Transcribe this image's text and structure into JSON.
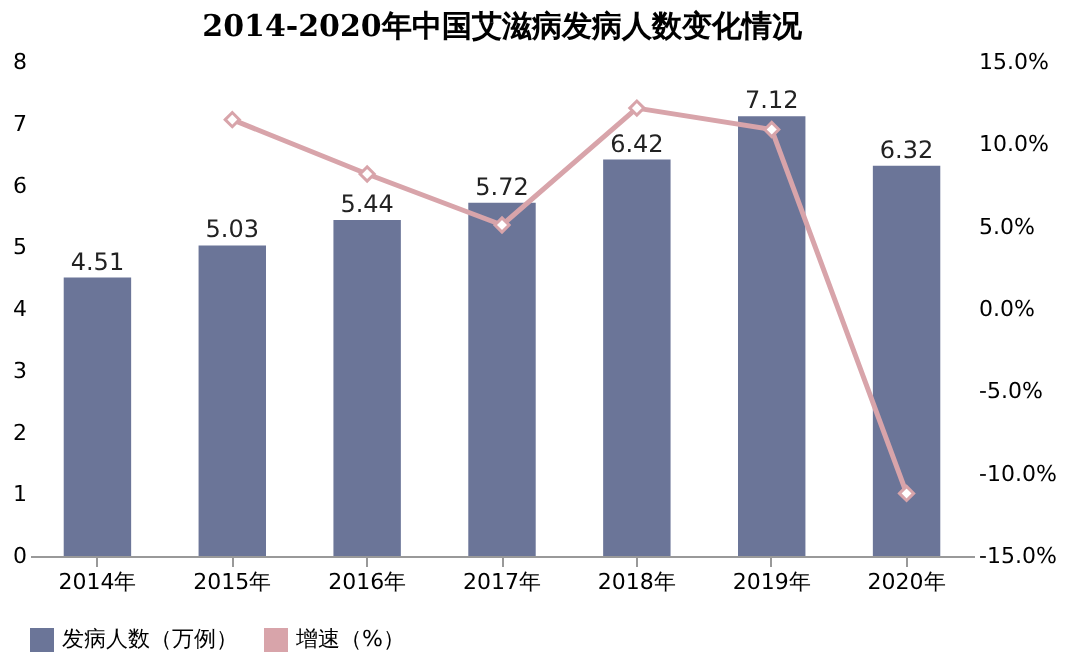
{
  "chart_data": {
    "type": "bar",
    "title": "2014-2020年中国艾滋病发病人数变化情况",
    "categories": [
      "2014年",
      "2015年",
      "2016年",
      "2017年",
      "2018年",
      "2019年",
      "2020年"
    ],
    "series": [
      {
        "name": "发病人数（万例）",
        "color": "#6b7598",
        "values": [
          4.51,
          5.03,
          5.44,
          5.72,
          6.42,
          7.12,
          6.32
        ],
        "value_labels": [
          "4.51",
          "5.03",
          "5.44",
          "5.72",
          "6.42",
          "7.12",
          "6.32"
        ]
      },
      {
        "name": "增速（%）",
        "type": "line",
        "axis": "y2",
        "color": "#d8a4aa",
        "marker": "diamond",
        "values": [
          null,
          11.5,
          8.2,
          5.1,
          12.2,
          10.9,
          -11.2
        ]
      }
    ],
    "ylim": [
      0,
      8
    ],
    "yticks": [
      0,
      1,
      2,
      3,
      4,
      5,
      6,
      7,
      8
    ],
    "y2lim": [
      -15,
      15
    ],
    "y2ticks": [
      {
        "value": -15,
        "label": "-15.0%"
      },
      {
        "value": -10,
        "label": "-10.0%"
      },
      {
        "value": -5,
        "label": "-5.0%"
      },
      {
        "value": 0,
        "label": "0.0%"
      },
      {
        "value": 5,
        "label": "5.0%"
      },
      {
        "value": 10,
        "label": "10.0%"
      },
      {
        "value": 15,
        "label": "15.0%"
      }
    ],
    "grid": false,
    "legend": "bottom"
  }
}
